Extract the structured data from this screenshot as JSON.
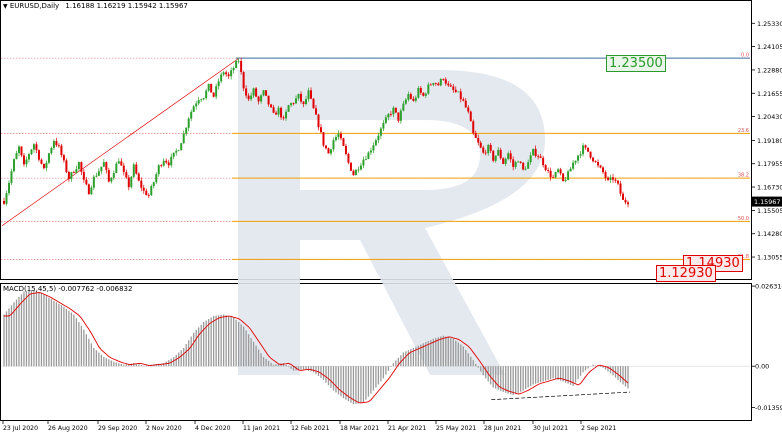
{
  "header": {
    "menu_icon": "dropdown-triangle-icon",
    "symbol": "EURUSD,Daily",
    "ohlc": "1.16188 1.16219 1.15942 1.15967"
  },
  "macd_header": "MACD(15,45,5) -0.007762 -0.006832",
  "callouts": {
    "top_level": "1.23500",
    "mid_level": "1.14930",
    "low_level": "1.12930"
  },
  "colors": {
    "bull": "#2ca02c",
    "bear": "#e00000",
    "fib": "#f0a000",
    "trend": "#e00000",
    "top_line": "#3a6ea5",
    "macd_signal": "#e00000",
    "macd_hist": "#9a9a9a",
    "watermark": "#dce3ea"
  },
  "chart_data": [
    {
      "type": "candlestick",
      "title": "EURUSD,Daily",
      "ylim": [
        1.1185,
        1.265
      ],
      "y_ticks": [
        "1.25330",
        "1.24105",
        "1.22880",
        "1.21655",
        "1.20430",
        "1.19180",
        "1.17955",
        "1.16730",
        "1.15505",
        "1.14280",
        "1.13055"
      ],
      "current_price": "1.15967",
      "fib_levels": [
        {
          "label": "0.0",
          "value": 1.235
        },
        {
          "label": "23.6",
          "value": 1.1955
        },
        {
          "label": "38.2",
          "value": 1.172
        },
        {
          "label": "50.0",
          "value": 1.1493
        },
        {
          "label": "61.8",
          "value": 1.1293
        }
      ],
      "x_ticks": [
        "23 Jul 2020",
        "26 Aug 2020",
        "29 Sep 2020",
        "2 Nov 2020",
        "4 Dec 2020",
        "11 Jan 2021",
        "12 Feb 2021",
        "18 Mar 2021",
        "21 Apr 2021",
        "25 May 2021",
        "28 Jun 2021",
        "30 Jul 2021",
        "2 Sep 2021"
      ],
      "close_path": [
        [
          0,
          1.16
        ],
        [
          5,
          1.17
        ],
        [
          10,
          1.181
        ],
        [
          15,
          1.188
        ],
        [
          20,
          1.178
        ],
        [
          25,
          1.185
        ],
        [
          30,
          1.19
        ],
        [
          35,
          1.183
        ],
        [
          40,
          1.176
        ],
        [
          45,
          1.185
        ],
        [
          50,
          1.192
        ],
        [
          55,
          1.188
        ],
        [
          60,
          1.18
        ],
        [
          65,
          1.172
        ],
        [
          70,
          1.176
        ],
        [
          75,
          1.18
        ],
        [
          80,
          1.17
        ],
        [
          85,
          1.165
        ],
        [
          90,
          1.172
        ],
        [
          95,
          1.176
        ],
        [
          100,
          1.18
        ],
        [
          105,
          1.17
        ],
        [
          110,
          1.176
        ],
        [
          115,
          1.182
        ],
        [
          120,
          1.174
        ],
        [
          125,
          1.168
        ],
        [
          130,
          1.178
        ],
        [
          135,
          1.17
        ],
        [
          140,
          1.165
        ],
        [
          145,
          1.163
        ],
        [
          150,
          1.17
        ],
        [
          155,
          1.178
        ],
        [
          160,
          1.182
        ],
        [
          165,
          1.18
        ],
        [
          170,
          1.184
        ],
        [
          175,
          1.188
        ],
        [
          180,
          1.195
        ],
        [
          185,
          1.204
        ],
        [
          190,
          1.21
        ],
        [
          195,
          1.214
        ],
        [
          200,
          1.215
        ],
        [
          205,
          1.22
        ],
        [
          210,
          1.215
        ],
        [
          215,
          1.223
        ],
        [
          220,
          1.228
        ],
        [
          225,
          1.225
        ],
        [
          230,
          1.23
        ],
        [
          235,
          1.234
        ],
        [
          240,
          1.22
        ],
        [
          245,
          1.213
        ],
        [
          250,
          1.218
        ],
        [
          255,
          1.212
        ],
        [
          260,
          1.217
        ],
        [
          265,
          1.211
        ],
        [
          270,
          1.205
        ],
        [
          275,
          1.208
        ],
        [
          280,
          1.202
        ],
        [
          285,
          1.21
        ],
        [
          290,
          1.212
        ],
        [
          295,
          1.215
        ],
        [
          300,
          1.21
        ],
        [
          305,
          1.217
        ],
        [
          310,
          1.208
        ],
        [
          315,
          1.2
        ],
        [
          320,
          1.19
        ],
        [
          325,
          1.185
        ],
        [
          330,
          1.192
        ],
        [
          335,
          1.195
        ],
        [
          340,
          1.188
        ],
        [
          345,
          1.18
        ],
        [
          350,
          1.174
        ],
        [
          355,
          1.178
        ],
        [
          360,
          1.182
        ],
        [
          365,
          1.185
        ],
        [
          370,
          1.19
        ],
        [
          375,
          1.195
        ],
        [
          380,
          1.2
        ],
        [
          385,
          1.205
        ],
        [
          390,
          1.208
        ],
        [
          395,
          1.203
        ],
        [
          400,
          1.21
        ],
        [
          405,
          1.216
        ],
        [
          410,
          1.212
        ],
        [
          415,
          1.218
        ],
        [
          420,
          1.215
        ],
        [
          425,
          1.22
        ],
        [
          430,
          1.223
        ],
        [
          435,
          1.221
        ],
        [
          440,
          1.225
        ],
        [
          445,
          1.22
        ],
        [
          450,
          1.218
        ],
        [
          455,
          1.216
        ],
        [
          460,
          1.212
        ],
        [
          465,
          1.206
        ],
        [
          470,
          1.195
        ],
        [
          475,
          1.19
        ],
        [
          480,
          1.185
        ],
        [
          485,
          1.188
        ],
        [
          490,
          1.182
        ],
        [
          495,
          1.186
        ],
        [
          500,
          1.18
        ],
        [
          505,
          1.185
        ],
        [
          510,
          1.178
        ],
        [
          515,
          1.182
        ],
        [
          520,
          1.176
        ],
        [
          525,
          1.18
        ],
        [
          530,
          1.186
        ],
        [
          535,
          1.184
        ],
        [
          540,
          1.18
        ],
        [
          545,
          1.175
        ],
        [
          550,
          1.172
        ],
        [
          555,
          1.176
        ],
        [
          560,
          1.17
        ],
        [
          565,
          1.174
        ],
        [
          570,
          1.18
        ],
        [
          575,
          1.184
        ],
        [
          580,
          1.188
        ],
        [
          585,
          1.186
        ],
        [
          590,
          1.182
        ],
        [
          595,
          1.178
        ],
        [
          600,
          1.175
        ],
        [
          605,
          1.17
        ],
        [
          610,
          1.172
        ],
        [
          615,
          1.168
        ],
        [
          620,
          1.16
        ],
        [
          625,
          1.1597
        ]
      ]
    },
    {
      "type": "histogram",
      "title": "MACD(15,45,5)",
      "values_text": "-0.007762 -0.006832",
      "ylim": [
        -0.018,
        0.027
      ],
      "y_ticks": [
        "0.026316",
        "0.00",
        "-0.013599"
      ],
      "hist_path": [
        [
          0,
          0.017
        ],
        [
          10,
          0.021
        ],
        [
          20,
          0.0245
        ],
        [
          30,
          0.025
        ],
        [
          40,
          0.0235
        ],
        [
          50,
          0.0215
        ],
        [
          60,
          0.0195
        ],
        [
          70,
          0.017
        ],
        [
          80,
          0.012
        ],
        [
          90,
          0.006
        ],
        [
          100,
          0.003
        ],
        [
          110,
          0.0015
        ],
        [
          120,
          0.0005
        ],
        [
          130,
          0.001
        ],
        [
          140,
          0.0002
        ],
        [
          150,
          0.0006
        ],
        [
          160,
          0.001
        ],
        [
          170,
          0.003
        ],
        [
          180,
          0.006
        ],
        [
          190,
          0.011
        ],
        [
          200,
          0.0145
        ],
        [
          210,
          0.0165
        ],
        [
          220,
          0.017
        ],
        [
          230,
          0.016
        ],
        [
          240,
          0.013
        ],
        [
          250,
          0.008
        ],
        [
          260,
          0.003
        ],
        [
          270,
          0.0005
        ],
        [
          280,
          0.001
        ],
        [
          290,
          -0.0015
        ],
        [
          300,
          -0.001
        ],
        [
          310,
          -0.002
        ],
        [
          320,
          -0.0045
        ],
        [
          330,
          -0.008
        ],
        [
          340,
          -0.0105
        ],
        [
          350,
          -0.0125
        ],
        [
          360,
          -0.012
        ],
        [
          370,
          -0.008
        ],
        [
          380,
          -0.004
        ],
        [
          390,
          0.001
        ],
        [
          400,
          0.0045
        ],
        [
          410,
          0.006
        ],
        [
          420,
          0.0075
        ],
        [
          430,
          0.009
        ],
        [
          440,
          0.01
        ],
        [
          450,
          0.009
        ],
        [
          460,
          0.0065
        ],
        [
          470,
          0.002
        ],
        [
          480,
          -0.003
        ],
        [
          490,
          -0.007
        ],
        [
          500,
          -0.0085
        ],
        [
          510,
          -0.0095
        ],
        [
          520,
          -0.008
        ],
        [
          530,
          -0.006
        ],
        [
          540,
          -0.005
        ],
        [
          550,
          -0.004
        ],
        [
          560,
          -0.005
        ],
        [
          570,
          -0.0065
        ],
        [
          580,
          -0.002
        ],
        [
          590,
          0.0005
        ],
        [
          600,
          -0.0005
        ],
        [
          610,
          -0.003
        ],
        [
          620,
          -0.006
        ],
        [
          627,
          -0.0078
        ]
      ]
    }
  ]
}
